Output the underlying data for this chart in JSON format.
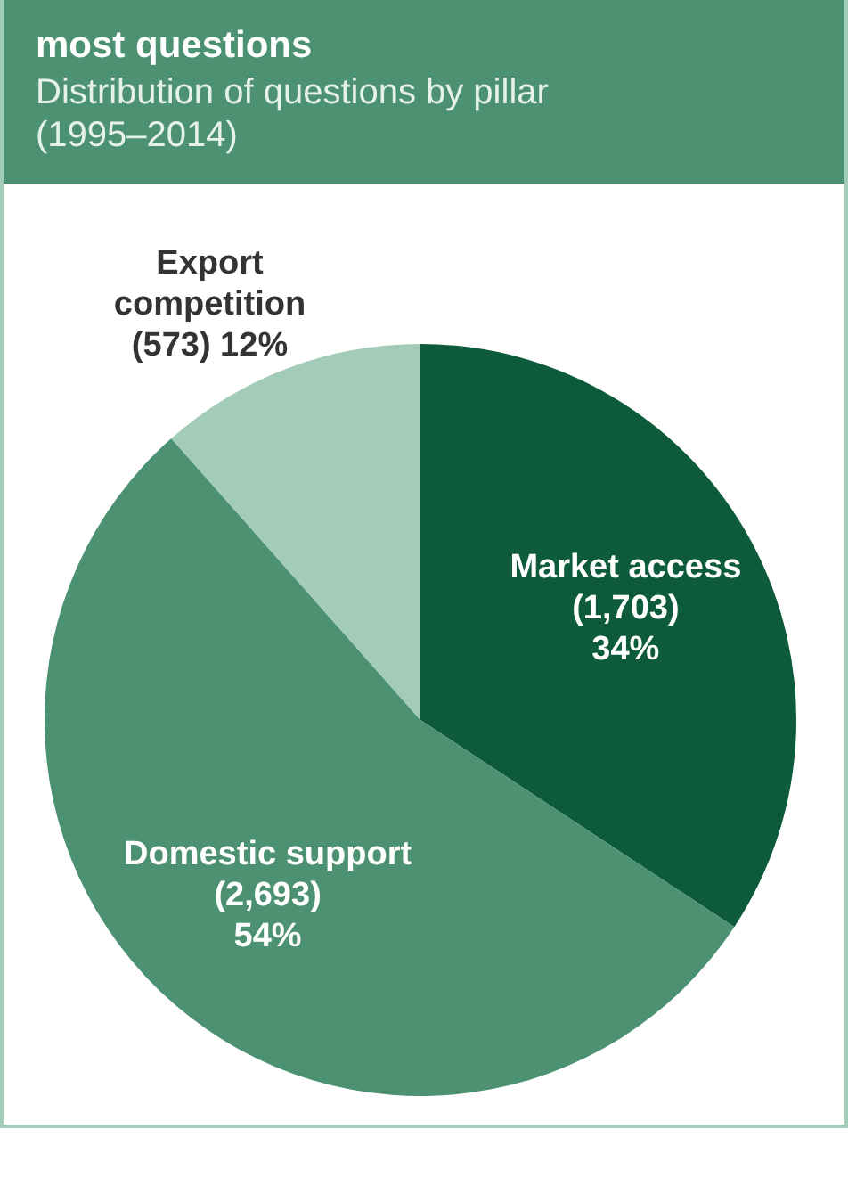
{
  "chart_data": {
    "type": "pie",
    "title": "most questions",
    "subtitle": "Distribution of questions by pillar (1995–2014)",
    "categories": [
      "Market access",
      "Domestic support",
      "Export competition"
    ],
    "values": [
      1703,
      2693,
      573
    ],
    "colors": [
      "#0d5b3b",
      "#4b9172",
      "#a2ccb8"
    ],
    "value_labels": [
      "(1,703) 34%",
      "(2,693) 54%",
      "(573) 12%"
    ],
    "legend": false
  }
}
